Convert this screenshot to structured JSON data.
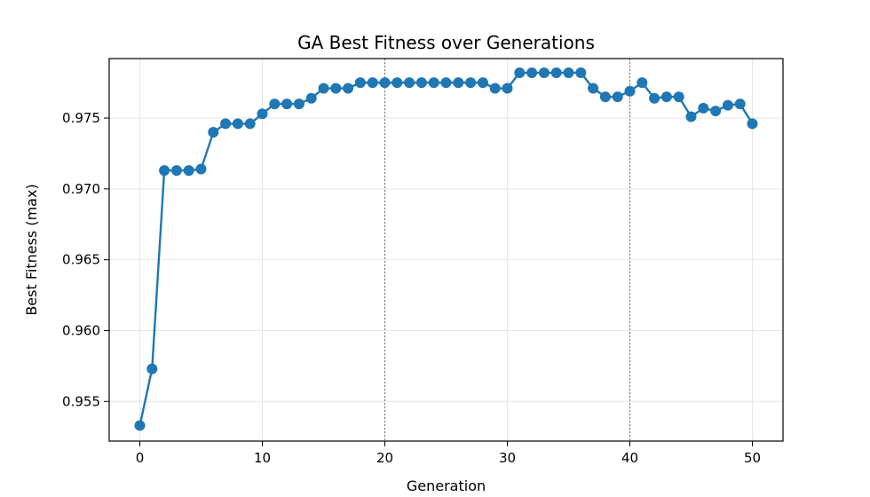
{
  "chart_data": {
    "type": "line",
    "title": "GA Best Fitness over Generations",
    "xlabel": "Generation",
    "ylabel": "Best Fitness (max)",
    "xlim": [
      -2.5,
      52.5
    ],
    "ylim": [
      0.9522,
      0.9792
    ],
    "xticks": [
      0,
      10,
      20,
      30,
      40,
      50
    ],
    "xtick_labels": [
      "0",
      "10",
      "20",
      "30",
      "40",
      "50"
    ],
    "yticks": [
      0.955,
      0.96,
      0.965,
      0.97,
      0.975
    ],
    "ytick_labels": [
      "0.955",
      "0.960",
      "0.965",
      "0.970",
      "0.975"
    ],
    "grid": true,
    "vertical_markers": [
      20,
      40
    ],
    "colors": {
      "series": "#1f77b4",
      "grid": "#e6e6e6",
      "marker_line": "#808080"
    },
    "series": [
      {
        "x": [
          0,
          1,
          2,
          3,
          4,
          5,
          6,
          7,
          8,
          9,
          10,
          11,
          12,
          13,
          14,
          15,
          16,
          17,
          18,
          19,
          20,
          21,
          22,
          23,
          24,
          25,
          26,
          27,
          28,
          29,
          30,
          31,
          32,
          33,
          34,
          35,
          36,
          37,
          38,
          39,
          40,
          41,
          42,
          43,
          44,
          45,
          46,
          47,
          48,
          49,
          50
        ],
        "y": [
          0.9533,
          0.9573,
          0.9713,
          0.9713,
          0.9713,
          0.9714,
          0.974,
          0.9746,
          0.9746,
          0.9746,
          0.9753,
          0.976,
          0.976,
          0.976,
          0.9764,
          0.9771,
          0.9771,
          0.9771,
          0.9775,
          0.9775,
          0.9775,
          0.9775,
          0.9775,
          0.9775,
          0.9775,
          0.9775,
          0.9775,
          0.9775,
          0.9775,
          0.9771,
          0.9771,
          0.9782,
          0.9782,
          0.9782,
          0.9782,
          0.9782,
          0.9782,
          0.9771,
          0.9765,
          0.9765,
          0.9769,
          0.9775,
          0.9764,
          0.9765,
          0.9765,
          0.9751,
          0.9757,
          0.9755,
          0.9759,
          0.976,
          0.9746
        ]
      }
    ]
  }
}
